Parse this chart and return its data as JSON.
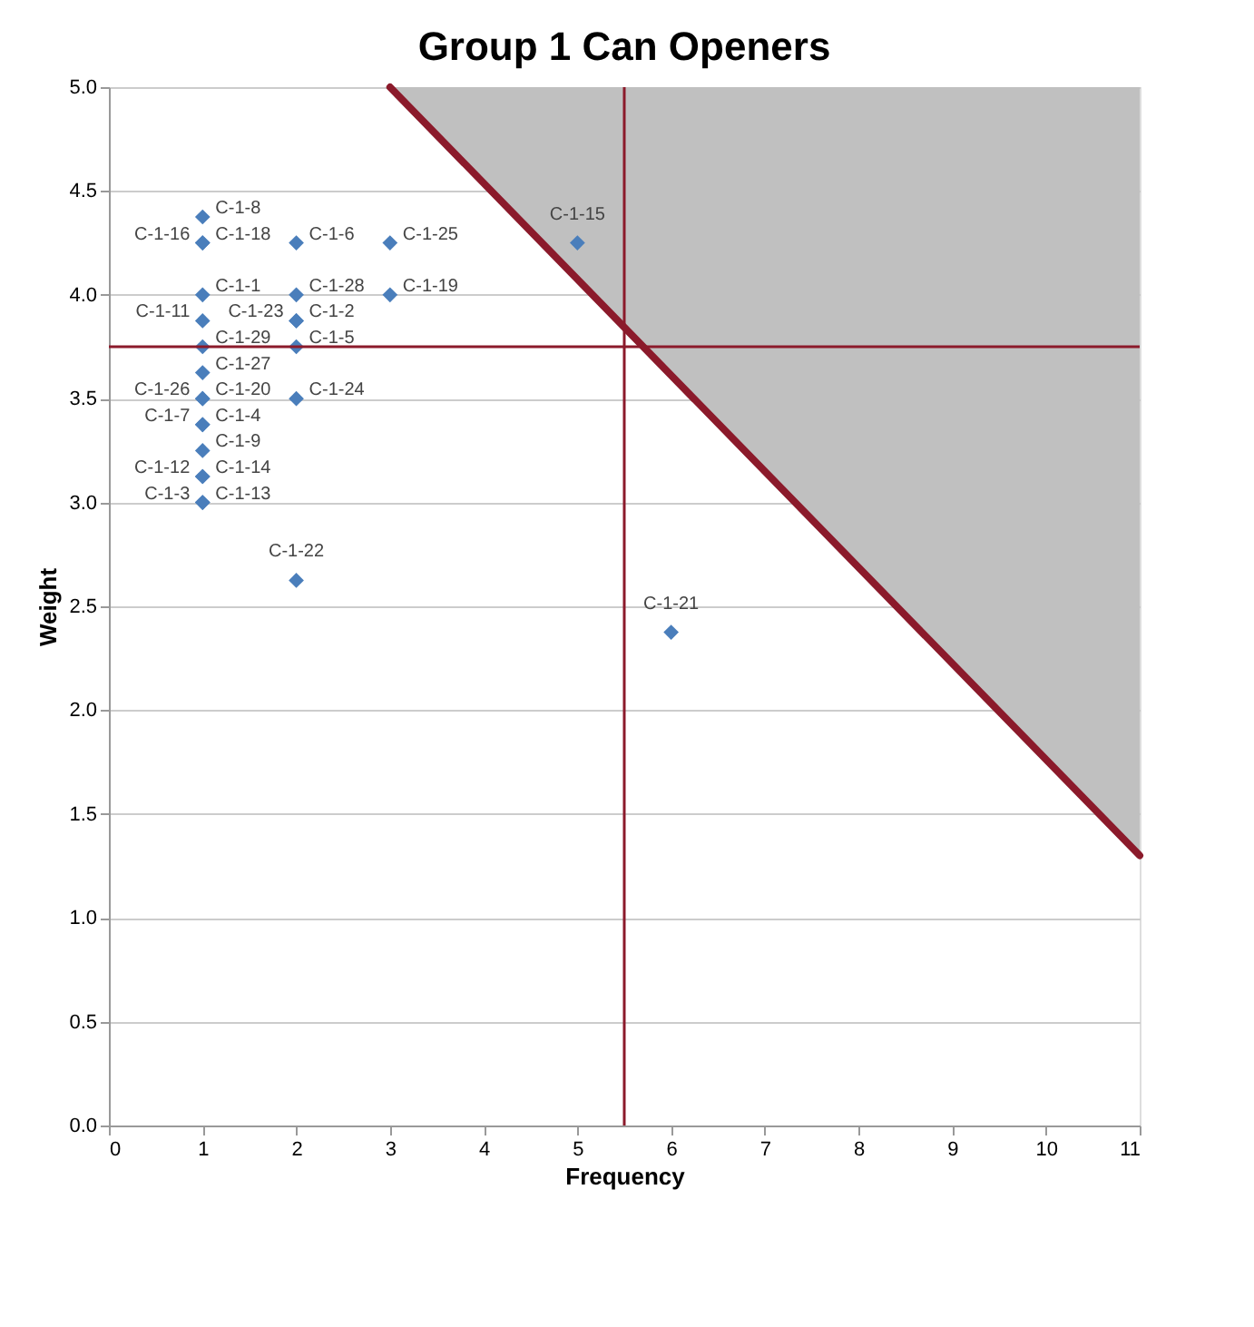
{
  "chart_data": {
    "type": "scatter",
    "title": "Group 1 Can Openers",
    "xlabel": "Frequency",
    "ylabel": "Weight",
    "xlim": [
      0,
      11
    ],
    "xticks": [
      0,
      1,
      2,
      3,
      4,
      5,
      6,
      7,
      8,
      9,
      10,
      11
    ],
    "ylim": [
      0,
      5
    ],
    "yticks": [
      {
        "value": 0,
        "label": "0.0"
      },
      0.5,
      {
        "value": 1,
        "label": "1.0"
      },
      1.5,
      {
        "value": 2,
        "label": "2.0"
      },
      2.5,
      {
        "value": 3,
        "label": "3.0"
      },
      3.5,
      {
        "value": 4,
        "label": "4.0"
      },
      4.5,
      {
        "value": 5,
        "label": "5.0"
      }
    ],
    "grid": "y",
    "series": [
      {
        "type": "line",
        "color": "#8b1a2b",
        "x": [
          3,
          11
        ],
        "values": [
          5,
          1.3
        ],
        "lower": [
          5,
          1.3
        ],
        "upper": [
          5,
          5
        ]
      },
      {
        "color": "#4a7ebb",
        "marker": "diamond",
        "x": [
          1,
          1,
          1,
          1,
          1,
          1,
          1,
          1,
          1,
          1,
          1,
          1,
          1,
          1,
          1,
          1,
          2,
          2,
          2,
          2,
          2,
          2,
          2,
          3,
          3,
          5,
          6
        ],
        "values": [
          4.375,
          4.25,
          4.25,
          4.0,
          3.875,
          3.75,
          3.625,
          3.5,
          3.5,
          3.375,
          3.375,
          3.25,
          3.125,
          3.125,
          3.0,
          3.0,
          4.25,
          4.0,
          3.875,
          3.875,
          3.75,
          3.5,
          2.625,
          4.25,
          4.0,
          4.25,
          2.375
        ],
        "value_labels": [
          "C-1-8",
          "C-1-18",
          "C-1-16",
          "C-1-1",
          "C-1-11",
          "C-1-29",
          "C-1-27",
          "C-1-20",
          "C-1-26",
          "C-1-4",
          "C-1-7",
          "C-1-9",
          "C-1-14",
          "C-1-12",
          "C-1-13",
          "C-1-3",
          "C-1-6",
          "C-1-28",
          "C-1-2",
          "C-1-23",
          "C-1-5",
          "C-1-24",
          "C-1-22",
          "C-1-25",
          "C-1-19",
          "C-1-15",
          "C-1-21"
        ]
      }
    ],
    "ref_lines": [
      {
        "axis": "x",
        "value": 5.5,
        "color": "#8b1a2b"
      },
      {
        "axis": "y",
        "value": 3.75,
        "color": "#8b1a2b"
      }
    ]
  }
}
